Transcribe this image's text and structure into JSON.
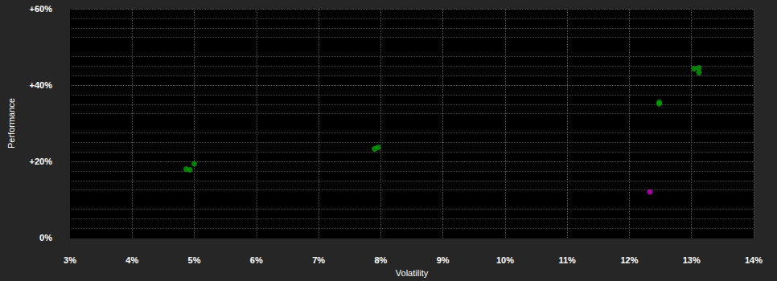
{
  "chart_data": {
    "type": "scatter",
    "x_label": "Volatility",
    "y_label": "Performance",
    "xlim": [
      3,
      14
    ],
    "xticks": [
      {
        "value": 3,
        "label": "3%"
      },
      {
        "value": 4,
        "label": "4%"
      },
      {
        "value": 5,
        "label": "5%"
      },
      {
        "value": 6,
        "label": "6%"
      },
      {
        "value": 7,
        "label": "7%"
      },
      {
        "value": 8,
        "label": "8%"
      },
      {
        "value": 9,
        "label": "9%"
      },
      {
        "value": 10,
        "label": "10%"
      },
      {
        "value": 11,
        "label": "11%"
      },
      {
        "value": 12,
        "label": "12%"
      },
      {
        "value": 13,
        "label": "13%"
      },
      {
        "value": 14,
        "label": "14%"
      }
    ],
    "ylim": [
      0,
      60
    ],
    "yticks": [
      {
        "value": 0,
        "label": "0%"
      },
      {
        "value": 20,
        "label": "+20%"
      },
      {
        "value": 40,
        "label": "+40%"
      },
      {
        "value": 60,
        "label": "+60%"
      }
    ],
    "grid": true,
    "series": [
      {
        "color": "#00a000",
        "x": [
          4.87,
          4.93,
          5.0,
          7.9,
          7.96,
          12.48,
          12.48,
          13.04,
          13.12,
          13.12
        ],
        "y": [
          18.0,
          17.8,
          19.4,
          23.3,
          23.7,
          35.5,
          35.1,
          44.3,
          44.5,
          43.3
        ]
      },
      {
        "color": "#cc00cc",
        "x": [
          12.33
        ],
        "y": [
          12.0
        ]
      }
    ]
  }
}
